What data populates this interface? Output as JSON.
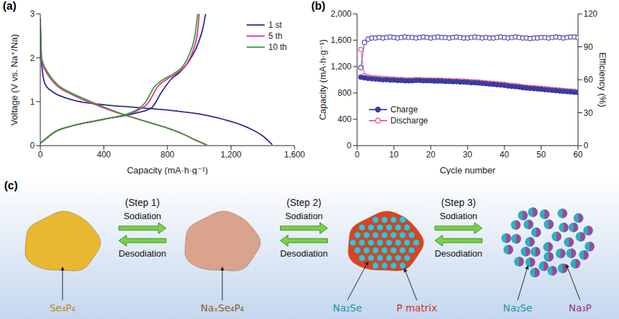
{
  "chart_data": [
    {
      "panel": "(a)",
      "type": "line",
      "x_label": "Capacity (mA·h·g⁻¹)",
      "y_label": "Voltage (V vs. Na⁺/Na)",
      "xlim": [
        0,
        1600
      ],
      "xticks": [
        0,
        400,
        800,
        {
          "value": 1200,
          "label": "1,200"
        },
        {
          "value": 1600,
          "label": "1,600"
        }
      ],
      "ylim": [
        0,
        3
      ],
      "yticks": [
        0,
        1,
        2,
        3
      ],
      "legend": "upper right",
      "series": [
        {
          "name": "1 st",
          "color": "#2a2a8a",
          "line_style": "solid",
          "x": [
            0,
            8,
            30,
            80,
            150,
            250,
            400,
            600,
            800,
            1000,
            1150,
            1300,
            1400,
            1460,
            null,
            0,
            100,
            200,
            400,
            600,
            700,
            760,
            820,
            880,
            940,
            990,
            1025,
            1040
          ],
          "values": [
            2.8,
            1.9,
            1.4,
            1.22,
            1.1,
            1.0,
            0.93,
            0.87,
            0.81,
            0.72,
            0.6,
            0.42,
            0.22,
            0.02,
            null,
            0.05,
            0.33,
            0.45,
            0.6,
            0.74,
            0.86,
            1.2,
            1.5,
            1.68,
            1.95,
            2.3,
            2.7,
            3.0
          ]
        },
        {
          "name": "5 th",
          "color": "#e0308a",
          "line_style": "solid",
          "x": [
            0,
            8,
            50,
            100,
            200,
            300,
            400,
            500,
            600,
            700,
            800,
            900,
            980,
            1050,
            null,
            0,
            100,
            200,
            400,
            600,
            680,
            740,
            800,
            860,
            920,
            960,
            990,
            1000
          ],
          "values": [
            2.8,
            1.95,
            1.6,
            1.38,
            1.16,
            1.0,
            0.86,
            0.73,
            0.62,
            0.51,
            0.4,
            0.26,
            0.12,
            0.02,
            null,
            0.05,
            0.33,
            0.45,
            0.6,
            0.78,
            0.98,
            1.35,
            1.52,
            1.65,
            1.85,
            2.15,
            2.6,
            3.0
          ]
        },
        {
          "name": "10 th",
          "color": "#3a9a3a",
          "line_style": "solid",
          "x": [
            0,
            8,
            50,
            100,
            200,
            300,
            400,
            500,
            600,
            700,
            800,
            900,
            980,
            1040,
            null,
            0,
            100,
            200,
            400,
            600,
            660,
            720,
            780,
            840,
            900,
            940,
            975,
            990
          ],
          "values": [
            2.9,
            2.0,
            1.65,
            1.42,
            1.19,
            1.03,
            0.88,
            0.74,
            0.62,
            0.51,
            0.4,
            0.26,
            0.12,
            0.02,
            null,
            0.05,
            0.33,
            0.45,
            0.6,
            0.8,
            0.98,
            1.35,
            1.52,
            1.64,
            1.82,
            2.1,
            2.55,
            3.0
          ]
        }
      ]
    },
    {
      "panel": "(b)",
      "type": "line",
      "x_label": "Cycle number",
      "y_label": "Capacity (mA·h·g⁻¹)",
      "y2_label": "Efficiency (%)",
      "xlim": [
        0,
        60
      ],
      "xticks": [
        0,
        10,
        20,
        30,
        40,
        50,
        60
      ],
      "ylim": [
        0,
        2000
      ],
      "yticks": [
        0,
        400,
        800,
        {
          "value": 1200,
          "label": "1,200"
        },
        {
          "value": 1600,
          "label": "1,600"
        },
        {
          "value": 2000,
          "label": "2,000"
        }
      ],
      "y2lim": [
        0,
        120
      ],
      "y2ticks": [
        0,
        30,
        60,
        90,
        120
      ],
      "legend": "lower left",
      "x": [
        1,
        2,
        3,
        4,
        5,
        6,
        7,
        8,
        9,
        10,
        11,
        12,
        13,
        14,
        15,
        16,
        17,
        18,
        19,
        20,
        21,
        22,
        23,
        24,
        25,
        26,
        27,
        28,
        29,
        30,
        31,
        32,
        33,
        34,
        35,
        36,
        37,
        38,
        39,
        40,
        41,
        42,
        43,
        44,
        45,
        46,
        47,
        48,
        49,
        50,
        51,
        52,
        53,
        54,
        55,
        56,
        57,
        58,
        59,
        60
      ],
      "series": [
        {
          "name": "Charge",
          "color": "#3b3b9e",
          "marker": "filled circle",
          "values": [
            1040,
            1030,
            1020,
            1015,
            1010,
            1005,
            1000,
            1000,
            995,
            995,
            990,
            990,
            985,
            985,
            985,
            990,
            990,
            985,
            985,
            985,
            980,
            980,
            980,
            975,
            975,
            970,
            970,
            965,
            965,
            960,
            955,
            955,
            950,
            945,
            940,
            935,
            930,
            925,
            920,
            915,
            905,
            900,
            895,
            890,
            880,
            875,
            870,
            865,
            860,
            855,
            850,
            845,
            840,
            835,
            830,
            825,
            820,
            815,
            810,
            805
          ]
        },
        {
          "name": "Discharge",
          "color": "#e8508a",
          "marker": "open circle",
          "values": [
            1460,
            1060,
            1045,
            1035,
            1030,
            1025,
            1020,
            1018,
            1012,
            1010,
            1005,
            1005,
            1000,
            1000,
            1000,
            1003,
            1003,
            1000,
            998,
            998,
            995,
            993,
            992,
            990,
            988,
            985,
            983,
            980,
            978,
            975,
            970,
            968,
            965,
            960,
            955,
            950,
            945,
            940,
            935,
            930,
            920,
            915,
            910,
            905,
            895,
            890,
            885,
            880,
            875,
            870,
            865,
            860,
            855,
            850,
            845,
            840,
            835,
            830,
            825,
            820
          ]
        },
        {
          "axis": "y2",
          "color": "#4a4aa8",
          "marker": "open circle",
          "values": [
            71,
            94,
            97,
            98,
            98,
            98.5,
            98,
            98.5,
            99,
            98.5,
            98,
            98.5,
            99,
            98.5,
            98.5,
            98,
            98.5,
            99,
            98.5,
            98,
            98.5,
            99,
            98.5,
            98.5,
            98,
            98.5,
            99,
            98.5,
            98,
            98,
            98.5,
            99,
            98.5,
            98,
            98.5,
            98,
            98,
            98.5,
            99,
            98.5,
            98,
            98.5,
            99,
            98.5,
            98,
            98,
            97.5,
            98,
            98,
            98.5,
            98.5,
            98,
            98.5,
            99,
            98.5,
            98,
            98.5,
            99,
            99,
            98.5
          ]
        }
      ]
    }
  ],
  "diagram": {
    "panel": "(c)",
    "nodes": [
      {
        "labels": [
          {
            "text": "Se₄P₄",
            "color": "#c08a14"
          }
        ]
      },
      {
        "labels": [
          {
            "text": "NaₓSe₄P₄",
            "color": "#8e5e30"
          }
        ]
      },
      {
        "labels": [
          {
            "text": "Na₂Se",
            "color": "#1596a8"
          },
          {
            "text": "P matrix",
            "color": "#d0301a"
          }
        ]
      },
      {
        "labels": [
          {
            "text": "Na₂Se",
            "color": "#1596a8"
          },
          {
            "text": "Na₃P",
            "color": "#93348a"
          }
        ]
      }
    ],
    "steps": [
      {
        "label": "(Step 1)",
        "forward": "Sodiation",
        "backward": "Desodiation"
      },
      {
        "label": "(Step 2)",
        "forward": "Sodiation",
        "backward": "Desodiation"
      },
      {
        "label": "(Step 3)",
        "forward": "Sodiation",
        "backward": "Desodiation"
      }
    ]
  }
}
